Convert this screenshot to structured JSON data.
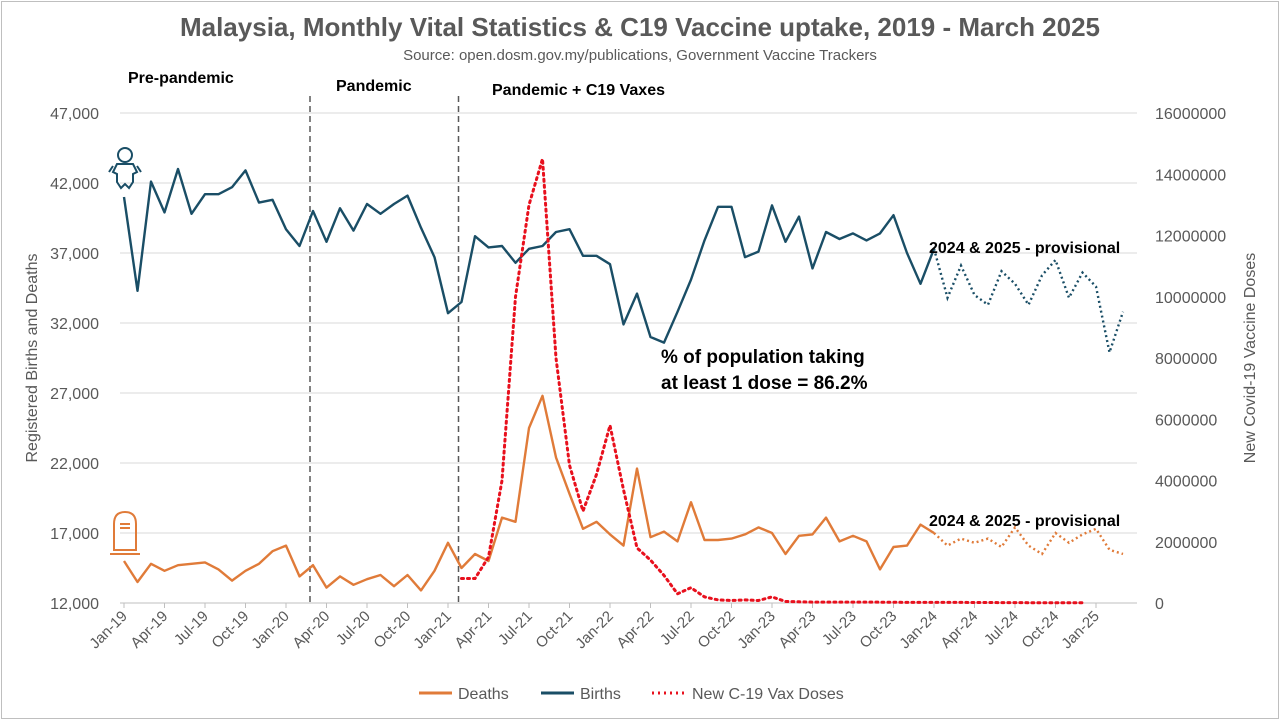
{
  "chart_data": {
    "type": "line",
    "title": "Malaysia, Monthly Vital Statistics & C19 Vaccine uptake, 2019 - March 2025",
    "subtitle": "Source: open.dosm.gov.my/publications, Government Vaccine Trackers",
    "ylabel": "Registered Births and Deaths",
    "y2label": "New Covid-19 Vaccine Doses",
    "ylim": [
      12000,
      47000
    ],
    "y2lim": [
      0,
      16000000
    ],
    "yticks": [
      "47,000",
      "42,000",
      "37,000",
      "32,000",
      "27,000",
      "22,000",
      "17,000",
      "12,000"
    ],
    "y2ticks": [
      "16000000",
      "14000000",
      "12000000",
      "10000000",
      "8000000",
      "6000000",
      "4000000",
      "2000000",
      "0"
    ],
    "xtick_labels": [
      "Jan-19",
      "Apr-19",
      "Jul-19",
      "Oct-19",
      "Jan-20",
      "Apr-20",
      "Jul-20",
      "Oct-20",
      "Jan-21",
      "Apr-21",
      "Jul-21",
      "Oct-21",
      "Jan-22",
      "Apr-22",
      "Jul-22",
      "Oct-22",
      "Jan-23",
      "Apr-23",
      "Jul-23",
      "Oct-23",
      "Jan-24",
      "Apr-24",
      "Jul-24",
      "Oct-24",
      "Jan-25"
    ],
    "x_start": "Jan-19",
    "x_end": "Mar-25",
    "provisional_from": "Jan-24",
    "grid": true,
    "legend_position": "bottom",
    "series": [
      {
        "name": "Deaths",
        "axis": "left",
        "color": "#e07b39",
        "values": [
          15000,
          13500,
          14800,
          14300,
          14700,
          14800,
          14900,
          14400,
          13600,
          14300,
          14800,
          15700,
          16100,
          13900,
          14700,
          13100,
          13900,
          13300,
          13700,
          14000,
          13200,
          14000,
          12900,
          14300,
          16300,
          14500,
          15500,
          15000,
          18100,
          17800,
          24500,
          26800,
          22400,
          19800,
          17300,
          17800,
          16900,
          16100,
          21600,
          16700,
          17100,
          16400,
          19200,
          16500,
          16500,
          16600,
          16900,
          17400,
          17000,
          15500,
          16800,
          16900,
          18100,
          16400,
          16800,
          16400,
          14400,
          16000,
          16100,
          17600,
          17000,
          16100,
          16600,
          16300,
          16600,
          16000,
          17400,
          16100,
          15500,
          17000,
          16300,
          16900,
          17300,
          15800,
          15500
        ]
      },
      {
        "name": "Births",
        "axis": "left",
        "color": "#1a4e66",
        "values": [
          41000,
          34300,
          42100,
          39900,
          43000,
          39800,
          41200,
          41200,
          41700,
          42900,
          40600,
          40800,
          38700,
          37500,
          40000,
          37800,
          40200,
          38600,
          40500,
          39800,
          40500,
          41100,
          38800,
          36700,
          32700,
          33500,
          38200,
          37400,
          37500,
          36300,
          37300,
          37500,
          38500,
          38700,
          36800,
          36800,
          36200,
          31900,
          34100,
          31000,
          30600,
          32800,
          35100,
          37900,
          40300,
          40300,
          36700,
          37100,
          40400,
          37800,
          39600,
          35900,
          38500,
          38000,
          38400,
          37900,
          38400,
          39700,
          37000,
          34800,
          37300,
          33800,
          36100,
          34000,
          33300,
          35700,
          34800,
          33300,
          35400,
          36500,
          33800,
          35600,
          34600,
          29900,
          32800
        ]
      },
      {
        "name": "New C-19 Vax Doses",
        "axis": "right",
        "color": "#e8101d",
        "values": [
          0,
          0,
          0,
          0,
          0,
          0,
          0,
          0,
          0,
          0,
          0,
          0,
          0,
          0,
          0,
          0,
          0,
          0,
          0,
          0,
          0,
          0,
          0,
          0,
          0,
          800000,
          800000,
          1500000,
          4000000,
          10000000,
          13000000,
          14500000,
          8000000,
          4500000,
          3000000,
          4200000,
          5800000,
          3700000,
          1800000,
          1400000,
          900000,
          300000,
          500000,
          200000,
          100000,
          80000,
          100000,
          80000,
          200000,
          50000,
          40000,
          30000,
          30000,
          30000,
          30000,
          30000,
          25000,
          25000,
          20000,
          20000,
          20000,
          20000,
          20000,
          15000,
          15000,
          12000,
          12000,
          10000,
          8000,
          5000,
          5000,
          5000
        ]
      }
    ],
    "annotations": {
      "prepandemic": "Pre-pandemic",
      "pandemic": "Pandemic",
      "pandemic_vax": "Pandemic + C19 Vaxes",
      "provisional_births": "2024 & 2025 - provisional",
      "provisional_deaths": "2024 & 2025 - provisional",
      "dose_line1": "% of population taking",
      "dose_line2": "at least 1 dose = 86.2%"
    },
    "icons": [
      "baby-icon",
      "tombstone-icon"
    ]
  }
}
